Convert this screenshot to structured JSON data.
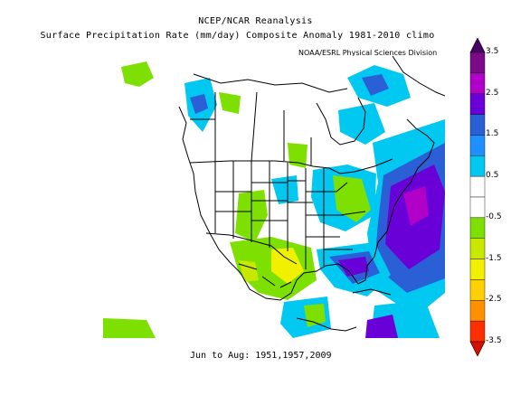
{
  "header": {
    "line1": "NCEP/NCAR Reanalysis",
    "line2": "Surface Precipitation Rate (mm/day) Composite Anomaly 1981-2010 climo",
    "credit": "NOAA/ESRL Physical Sciences Division"
  },
  "footer": {
    "period": "Jun to Aug: 1951,1957,2009"
  },
  "legend": {
    "ticks": [
      "3.5",
      "2.5",
      "1.5",
      "0.5",
      "-0.5",
      "-1.5",
      "-2.5",
      "-3.5"
    ],
    "colors": [
      "#7b0a86",
      "#b100c8",
      "#6a00d8",
      "#2a5fd6",
      "#1e90ff",
      "#00c8f0",
      "#ffffff",
      "#ffffff",
      "#7ee000",
      "#c8e800",
      "#f0f000",
      "#ffd000",
      "#ff9000",
      "#ff3000"
    ],
    "top_color": "#4b0066",
    "bottom_color": "#d41000"
  }
}
